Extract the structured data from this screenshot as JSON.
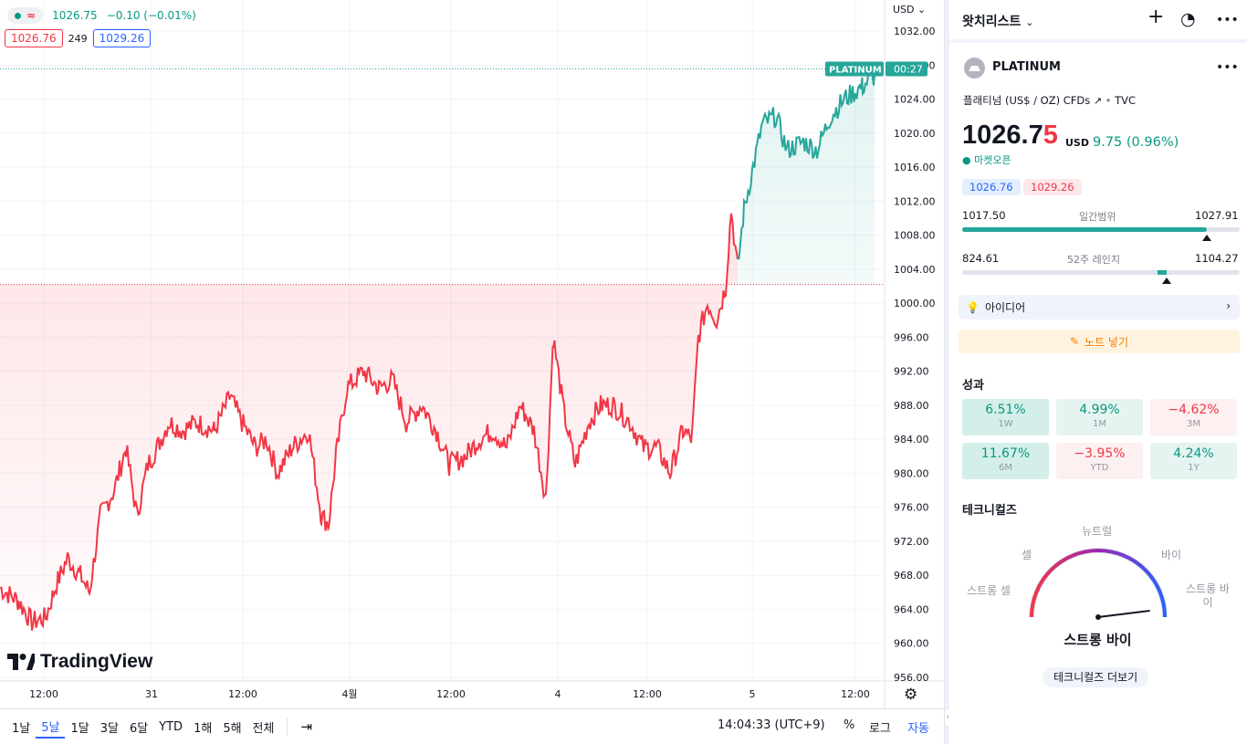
{
  "chart": {
    "legend": {
      "last": "1026.75",
      "change": "−0.10 (−0.01%)"
    },
    "bid": "1026.76",
    "spread": "249",
    "ask": "1029.26",
    "currency": "USD",
    "symbol_tag": "PLATINUM",
    "countdown": "00:27",
    "y_ticks": [
      "1032.00",
      "1028.00",
      "1024.00",
      "1020.00",
      "1016.00",
      "1012.00",
      "1008.00",
      "1004.00",
      "1000.00",
      "996.00",
      "992.00",
      "988.00",
      "984.00",
      "980.00",
      "976.00",
      "972.00",
      "968.00",
      "964.00",
      "960.00",
      "956.00"
    ],
    "x_ticks": [
      "12:00",
      "31",
      "12:00",
      "4월",
      "12:00",
      "4",
      "12:00",
      "5",
      "12:00"
    ],
    "logo_text": "TradingView",
    "colors": {
      "up": "#26a69a",
      "down": "#f23645",
      "up_fill": "#e9f5f3",
      "down_fill": "#fde8ea"
    }
  },
  "chart_data": {
    "type": "area",
    "title": "PLATINUM",
    "ylabel": "USD",
    "ylim": [
      956,
      1034
    ],
    "baseline": 1002.2,
    "x": [
      "31",
      "4월",
      "4",
      "5"
    ],
    "anchors": [
      [
        0,
        966.5
      ],
      [
        20,
        965
      ],
      [
        35,
        962.5
      ],
      [
        50,
        963
      ],
      [
        62,
        967
      ],
      [
        74,
        970
      ],
      [
        88,
        968
      ],
      [
        98,
        966
      ],
      [
        110,
        975
      ],
      [
        125,
        978
      ],
      [
        138,
        983
      ],
      [
        150,
        975
      ],
      [
        162,
        981
      ],
      [
        172,
        983
      ],
      [
        185,
        986
      ],
      [
        200,
        985
      ],
      [
        215,
        986
      ],
      [
        235,
        985
      ],
      [
        252,
        989
      ],
      [
        265,
        986
      ],
      [
        280,
        983
      ],
      [
        292,
        984
      ],
      [
        304,
        980
      ],
      [
        320,
        983
      ],
      [
        338,
        985
      ],
      [
        352,
        975
      ],
      [
        360,
        974
      ],
      [
        368,
        982
      ],
      [
        380,
        990
      ],
      [
        398,
        992
      ],
      [
        415,
        990
      ],
      [
        430,
        991
      ],
      [
        445,
        986
      ],
      [
        462,
        988
      ],
      [
        478,
        985
      ],
      [
        492,
        981
      ],
      [
        510,
        982
      ],
      [
        525,
        984
      ],
      [
        540,
        985
      ],
      [
        555,
        983
      ],
      [
        570,
        988
      ],
      [
        585,
        985
      ],
      [
        598,
        977
      ],
      [
        606,
        996
      ],
      [
        618,
        987
      ],
      [
        630,
        981
      ],
      [
        645,
        986
      ],
      [
        658,
        988
      ],
      [
        672,
        988
      ],
      [
        690,
        986
      ],
      [
        705,
        983
      ],
      [
        720,
        983
      ],
      [
        734,
        980
      ],
      [
        748,
        985
      ],
      [
        758,
        984
      ],
      [
        765,
        996
      ],
      [
        775,
        1000
      ],
      [
        785,
        998
      ],
      [
        795,
        1002
      ],
      [
        801,
        1011
      ],
      [
        808,
        1004
      ],
      [
        815,
        1011
      ],
      [
        825,
        1016
      ],
      [
        835,
        1021
      ],
      [
        850,
        1022
      ],
      [
        862,
        1018
      ],
      [
        880,
        1019
      ],
      [
        895,
        1018
      ],
      [
        910,
        1022
      ],
      [
        925,
        1024
      ],
      [
        945,
        1025.5
      ],
      [
        958,
        1026.75
      ]
    ]
  },
  "toolbar": {
    "ranges": [
      "1날",
      "5날",
      "1달",
      "3달",
      "6달",
      "YTD",
      "1해",
      "5해",
      "전체"
    ],
    "active_range": "5날",
    "clock": "14:04:33 (UTC+9)",
    "percent": "%",
    "log": "로그",
    "auto": "자동"
  },
  "panel": {
    "watchlist_title": "왓치리스트",
    "symbol": "PLATINUM",
    "description": "플래티넘 (US$ / OZ) CFDs",
    "exchange": "TVC",
    "price_main": "1026.7",
    "price_last_digit": "5",
    "price_currency": "USD",
    "price_change": "9.75 (0.96%)",
    "market_status": "마켓오픈",
    "bid": "1026.76",
    "ask": "1029.26",
    "day_range": {
      "low": "1017.50",
      "label": "일간범위",
      "high": "1027.91",
      "position": 0.88
    },
    "year_range": {
      "low": "824.61",
      "label": "52주 레인지",
      "high": "1104.27",
      "position": 0.72
    },
    "ideas": "아이디어",
    "add_note": "노트 넣기",
    "performance_title": "성과",
    "performance": [
      {
        "value": "6.51%",
        "period": "1W",
        "dir": "pos strong"
      },
      {
        "value": "4.99%",
        "period": "1M",
        "dir": "pos"
      },
      {
        "value": "−4.62%",
        "period": "3M",
        "dir": "neg"
      },
      {
        "value": "11.67%",
        "period": "6M",
        "dir": "pos strong"
      },
      {
        "value": "−3.95%",
        "period": "YTD",
        "dir": "neg"
      },
      {
        "value": "4.24%",
        "period": "1Y",
        "dir": "pos"
      }
    ],
    "technicals_title": "테크니컬즈",
    "gauge": {
      "neutral": "뉴트럴",
      "sell": "셀",
      "buy": "바이",
      "strong_sell": "스트롱 셀",
      "strong_buy_1": "스트롱 바",
      "strong_buy_2": "이",
      "result": "스트롱 바이",
      "needle": 0.93
    },
    "more_technicals": "테크니컬즈 더보기"
  }
}
